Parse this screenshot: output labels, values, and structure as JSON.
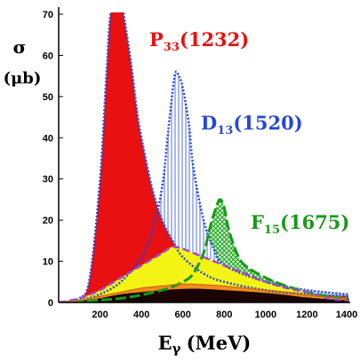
{
  "chart_data": {
    "type": "area",
    "xlabel": "Eγ (MeV)",
    "xlabel_main": "E",
    "xlabel_greek": "γ",
    "xlabel_unit": "(MeV)",
    "ylabel": "σ (μb)",
    "ylabel_symbol": "σ",
    "ylabel_unit": "(μb)",
    "xlim": [
      0,
      1400
    ],
    "ylim": [
      0,
      70
    ],
    "x_ticks": [
      "200",
      "400",
      "600",
      "800",
      "1000",
      "1200",
      "1400"
    ],
    "y_ticks": [
      "0",
      "10",
      "20",
      "30",
      "40",
      "50",
      "60",
      "70"
    ],
    "grid": false,
    "colors": {
      "p33": "#e81010",
      "d13_line": "#2448d8",
      "d13_fill": "#c8d0ee",
      "f15_line": "#189a18",
      "f15_fill": "#b6e8a8",
      "yellow_fill": "#f4f414",
      "yellow_line": "#a448d0",
      "orange": "#f08c1c",
      "dark": "#1a0404",
      "axis": "#000000"
    },
    "labels": [
      {
        "main": "P",
        "sub": "33",
        "mass": "(1232)",
        "color": "#e81010"
      },
      {
        "main": "D",
        "sub": "13",
        "mass": "(1520)",
        "color": "#2448d8"
      },
      {
        "main": "F",
        "sub": "15",
        "mass": "(1675)",
        "color": "#189a18"
      }
    ],
    "series": [
      {
        "x": [
          0,
          100,
          150,
          200,
          230,
          250,
          280,
          300,
          320,
          350,
          380,
          400,
          450,
          500,
          550,
          600,
          700,
          800,
          1000,
          1200,
          1400
        ],
        "y": [
          0,
          1,
          6,
          30,
          55,
          70,
          76,
          74,
          68,
          58,
          46,
          40,
          28,
          20,
          15,
          11,
          7,
          5,
          3,
          2,
          1.5
        ]
      },
      {
        "x": [
          0,
          100,
          200,
          300,
          400,
          450,
          500,
          530,
          560,
          580,
          600,
          630,
          650,
          700,
          750,
          800,
          1000,
          1200,
          1400
        ],
        "y": [
          0,
          0.5,
          2,
          5,
          11,
          17,
          28,
          42,
          55,
          55,
          52,
          43,
          33,
          20,
          13,
          9,
          5,
          3,
          2
        ]
      },
      {
        "x": [
          0,
          300,
          500,
          600,
          650,
          700,
          730,
          760,
          780,
          800,
          820,
          860,
          900,
          1000,
          1100,
          1200,
          1300,
          1400
        ],
        "y": [
          0,
          1,
          3,
          5,
          7,
          12,
          18,
          23,
          25,
          23,
          18,
          12,
          9,
          6,
          4,
          2.5,
          1.5,
          1
        ]
      },
      {
        "x": [
          0,
          100,
          200,
          300,
          400,
          500,
          550,
          600,
          700,
          800,
          900,
          1000,
          1100,
          1200,
          1300,
          1400
        ],
        "y": [
          0,
          1,
          3,
          6,
          9,
          12,
          13.5,
          13,
          11,
          9,
          7,
          5,
          3.5,
          2.5,
          1,
          0.5
        ]
      },
      {
        "x": [
          0,
          100,
          200,
          300,
          400,
          500,
          600,
          700,
          800,
          900,
          1000,
          1100,
          1200,
          1300,
          1400
        ],
        "y": [
          0,
          0.5,
          1.5,
          2.5,
          3.5,
          4,
          4.5,
          4.3,
          4,
          3.5,
          3,
          2.5,
          1.8,
          1.3,
          1
        ]
      },
      {
        "x": [
          0,
          100,
          200,
          300,
          400,
          500,
          600,
          700,
          800,
          900,
          1000,
          1100,
          1200,
          1300,
          1400
        ],
        "y": [
          0,
          0.3,
          1,
          2,
          2.5,
          3,
          3.3,
          3.3,
          3,
          2.7,
          2.3,
          1.8,
          1.2,
          0.8,
          0.5
        ]
      }
    ]
  }
}
